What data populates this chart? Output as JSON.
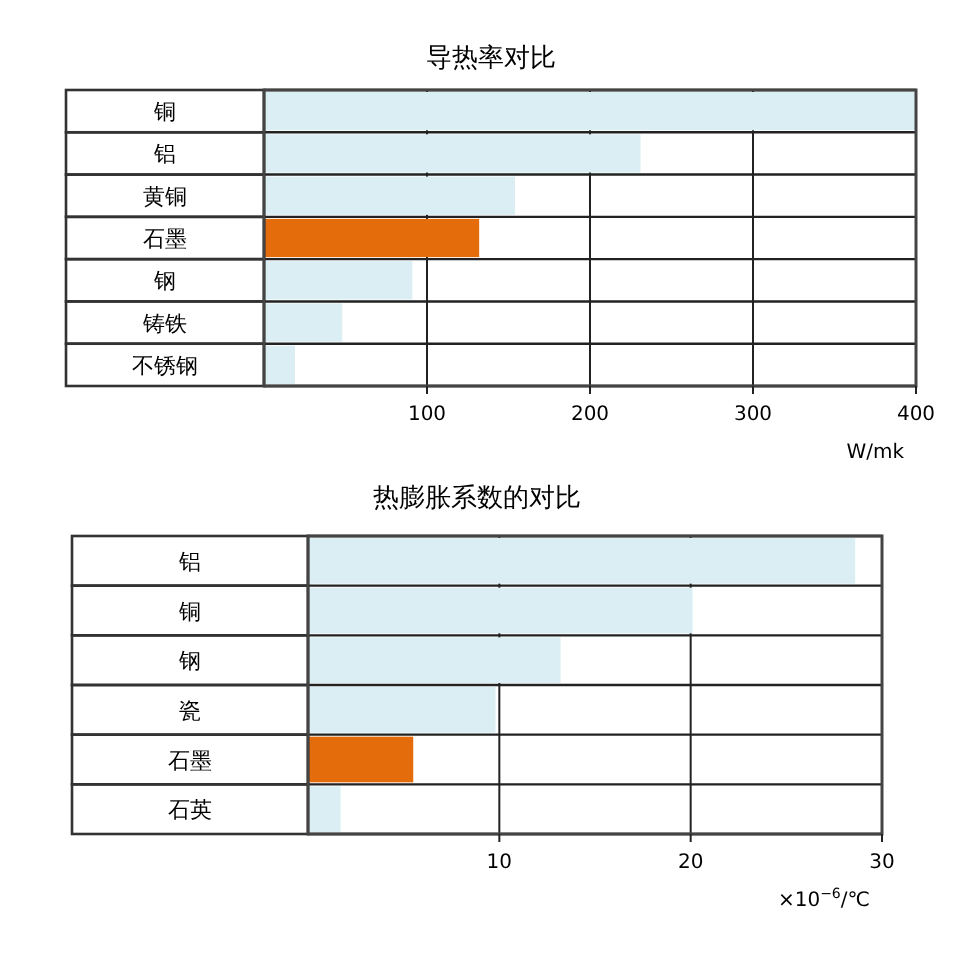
{
  "chart_data": [
    {
      "type": "bar",
      "orientation": "horizontal",
      "title": "导热率对比",
      "xlabel": "W/mk",
      "categories": [
        "铜",
        "铝",
        "黄铜",
        "石墨",
        "钢",
        "铸铁",
        "不锈钢"
      ],
      "values": [
        400,
        231,
        154,
        132,
        91,
        48,
        19
      ],
      "colors": [
        "#daeef3",
        "#daeef3",
        "#daeef3",
        "#e46c0a",
        "#daeef3",
        "#daeef3",
        "#daeef3"
      ],
      "xlim": [
        0,
        400
      ],
      "xticks": [
        100,
        200,
        300,
        400
      ],
      "grid": "x"
    },
    {
      "type": "bar",
      "orientation": "horizontal",
      "title": "热膨胀系数的对比",
      "xlabel": "×10$^{−6}$/℃",
      "categories": [
        "铝",
        "铜",
        "钢",
        "瓷",
        "石墨",
        "石英"
      ],
      "values": [
        28.6,
        20.1,
        13.2,
        9.8,
        5.5,
        1.7
      ],
      "colors": [
        "#daeef3",
        "#daeef3",
        "#daeef3",
        "#daeef3",
        "#e46c0a",
        "#daeef3"
      ],
      "xlim": [
        0,
        30
      ],
      "xticks": [
        10,
        20,
        30
      ],
      "grid": "x"
    }
  ]
}
